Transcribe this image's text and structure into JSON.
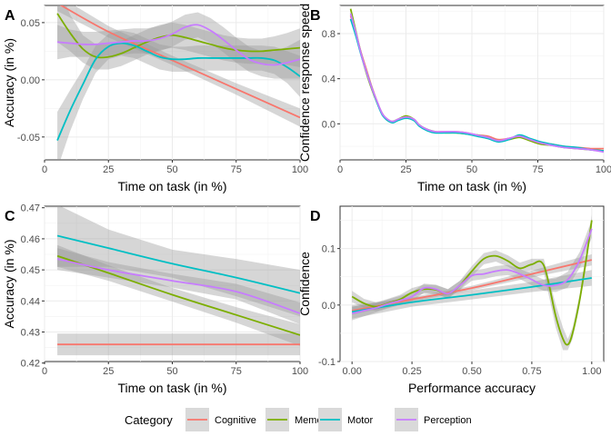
{
  "legend": {
    "title": "Category",
    "items": [
      {
        "name": "Cognitive",
        "color": "#F8766D"
      },
      {
        "name": "Memory",
        "color": "#7CAE00"
      },
      {
        "name": "Motor",
        "color": "#00BFC4"
      },
      {
        "name": "Perception",
        "color": "#C77CFF"
      }
    ]
  },
  "chart_data": [
    {
      "panel": "A",
      "type": "line",
      "xlabel": "Time on task (in %)",
      "ylabel": "Accuracy (in %)",
      "xlim": [
        0,
        100
      ],
      "ylim": [
        -0.07,
        0.065
      ],
      "x_ticks": [
        0,
        25,
        50,
        75,
        100
      ],
      "x_tick_labels": [
        "0",
        "25",
        "50",
        "75",
        "100"
      ],
      "y_ticks": [
        -0.05,
        0,
        0.05
      ],
      "y_tick_labels": [
        "-0.05",
        "0.00",
        "0.05"
      ],
      "grid": true,
      "series": [
        {
          "name": "Cognitive",
          "x": [
            5,
            25,
            50,
            75,
            100
          ],
          "y": [
            0.067,
            0.042,
            0.017,
            -0.008,
            -0.033
          ],
          "band": [
            0.007,
            0.005,
            0.004,
            0.005,
            0.008
          ]
        },
        {
          "name": "Memory",
          "x": [
            5,
            10,
            15,
            20,
            25,
            30,
            35,
            40,
            45,
            50,
            55,
            60,
            65,
            70,
            75,
            80,
            85,
            90,
            95,
            100
          ],
          "y": [
            0.058,
            0.041,
            0.027,
            0.02,
            0.02,
            0.023,
            0.028,
            0.033,
            0.037,
            0.039,
            0.037,
            0.034,
            0.031,
            0.028,
            0.026,
            0.025,
            0.025,
            0.026,
            0.027,
            0.028
          ],
          "band": [
            0.025,
            0.016,
            0.012,
            0.011,
            0.011,
            0.011,
            0.011,
            0.011,
            0.011,
            0.011,
            0.011,
            0.011,
            0.011,
            0.011,
            0.011,
            0.011,
            0.011,
            0.012,
            0.014,
            0.017
          ]
        },
        {
          "name": "Motor",
          "x": [
            5,
            10,
            15,
            20,
            25,
            30,
            35,
            40,
            45,
            50,
            55,
            60,
            65,
            70,
            75,
            80,
            85,
            90,
            95,
            100
          ],
          "y": [
            -0.053,
            -0.027,
            -0.004,
            0.018,
            0.029,
            0.032,
            0.03,
            0.025,
            0.02,
            0.018,
            0.018,
            0.019,
            0.019,
            0.019,
            0.019,
            0.019,
            0.019,
            0.017,
            0.011,
            0.003
          ],
          "band": [
            0.025,
            0.018,
            0.013,
            0.012,
            0.011,
            0.011,
            0.011,
            0.011,
            0.011,
            0.011,
            0.011,
            0.011,
            0.011,
            0.011,
            0.011,
            0.011,
            0.011,
            0.012,
            0.014,
            0.018
          ]
        },
        {
          "name": "Perception",
          "x": [
            5,
            10,
            15,
            20,
            25,
            30,
            35,
            40,
            45,
            50,
            55,
            60,
            65,
            70,
            75,
            80,
            85,
            90,
            95,
            100
          ],
          "y": [
            0.033,
            0.032,
            0.031,
            0.031,
            0.032,
            0.033,
            0.034,
            0.034,
            0.036,
            0.04,
            0.046,
            0.048,
            0.043,
            0.035,
            0.026,
            0.018,
            0.014,
            0.013,
            0.015,
            0.018
          ],
          "band": [
            0.015,
            0.012,
            0.011,
            0.011,
            0.011,
            0.011,
            0.011,
            0.011,
            0.011,
            0.011,
            0.011,
            0.011,
            0.011,
            0.011,
            0.011,
            0.011,
            0.011,
            0.012,
            0.014,
            0.017
          ]
        }
      ]
    },
    {
      "panel": "B",
      "type": "line",
      "xlabel": "Time on task (in %)",
      "ylabel": "Confidence response speed",
      "xlim": [
        0,
        100
      ],
      "ylim": [
        -0.32,
        1.05
      ],
      "x_ticks": [
        0,
        25,
        50,
        75,
        100
      ],
      "x_tick_labels": [
        "0",
        "25",
        "50",
        "75",
        "100"
      ],
      "y_ticks": [
        0,
        0.4,
        0.8
      ],
      "y_tick_labels": [
        "0.0",
        "0.4",
        "0.8"
      ],
      "grid": true,
      "series": [
        {
          "name": "Cognitive",
          "x": [
            4,
            6,
            8,
            10,
            12,
            14,
            16,
            18,
            20,
            22,
            25,
            28,
            30,
            33,
            36,
            40,
            44,
            48,
            52,
            56,
            60,
            64,
            68,
            72,
            76,
            80,
            85,
            90,
            95,
            100
          ],
          "y": [
            0.96,
            0.8,
            0.63,
            0.48,
            0.33,
            0.2,
            0.09,
            0.04,
            0.02,
            0.04,
            0.06,
            0.04,
            -0.01,
            -0.05,
            -0.07,
            -0.07,
            -0.07,
            -0.08,
            -0.1,
            -0.11,
            -0.14,
            -0.13,
            -0.11,
            -0.14,
            -0.17,
            -0.18,
            -0.2,
            -0.21,
            -0.22,
            -0.22
          ]
        },
        {
          "name": "Memory",
          "x": [
            4,
            6,
            8,
            10,
            12,
            14,
            16,
            18,
            20,
            22,
            25,
            28,
            30,
            33,
            36,
            40,
            44,
            48,
            52,
            56,
            60,
            64,
            68,
            72,
            76,
            80,
            85,
            90,
            95,
            100
          ],
          "y": [
            1.02,
            0.82,
            0.62,
            0.45,
            0.31,
            0.19,
            0.09,
            0.03,
            0.02,
            0.04,
            0.07,
            0.04,
            -0.01,
            -0.05,
            -0.07,
            -0.08,
            -0.08,
            -0.09,
            -0.1,
            -0.12,
            -0.15,
            -0.14,
            -0.12,
            -0.15,
            -0.18,
            -0.19,
            -0.21,
            -0.22,
            -0.23,
            -0.24
          ]
        },
        {
          "name": "Motor",
          "x": [
            4,
            6,
            8,
            10,
            12,
            14,
            16,
            18,
            20,
            22,
            25,
            28,
            30,
            33,
            36,
            40,
            44,
            48,
            52,
            56,
            60,
            64,
            68,
            72,
            76,
            80,
            85,
            90,
            95,
            100
          ],
          "y": [
            0.93,
            0.78,
            0.61,
            0.46,
            0.32,
            0.19,
            0.08,
            0.03,
            0.01,
            0.03,
            0.05,
            0.03,
            -0.02,
            -0.06,
            -0.08,
            -0.08,
            -0.08,
            -0.09,
            -0.11,
            -0.13,
            -0.16,
            -0.14,
            -0.1,
            -0.13,
            -0.16,
            -0.18,
            -0.2,
            -0.21,
            -0.23,
            -0.24
          ]
        },
        {
          "name": "Perception",
          "x": [
            4,
            6,
            8,
            10,
            12,
            14,
            16,
            18,
            20,
            22,
            25,
            28,
            30,
            33,
            36,
            40,
            44,
            48,
            52,
            56,
            60,
            64,
            68,
            72,
            76,
            80,
            85,
            90,
            95,
            100
          ],
          "y": [
            0.98,
            0.81,
            0.62,
            0.46,
            0.32,
            0.2,
            0.09,
            0.04,
            0.02,
            0.04,
            0.06,
            0.04,
            -0.01,
            -0.05,
            -0.07,
            -0.07,
            -0.07,
            -0.08,
            -0.1,
            -0.12,
            -0.15,
            -0.13,
            -0.11,
            -0.14,
            -0.17,
            -0.19,
            -0.21,
            -0.22,
            -0.23,
            -0.25
          ]
        }
      ]
    },
    {
      "panel": "C",
      "type": "line",
      "xlabel": "Time on task (in %)",
      "ylabel": "Accuracy (in %)",
      "xlim": [
        0,
        100
      ],
      "ylim": [
        0.4205,
        0.4705
      ],
      "x_ticks": [
        0,
        25,
        50,
        75,
        100
      ],
      "x_tick_labels": [
        "0",
        "25",
        "50",
        "75",
        "100"
      ],
      "y_ticks": [
        0.42,
        0.43,
        0.44,
        0.45,
        0.46,
        0.47
      ],
      "y_tick_labels": [
        "0.42",
        "0.43",
        "0.44",
        "0.45",
        "0.46",
        "0.47"
      ],
      "grid": true,
      "series": [
        {
          "name": "Cognitive",
          "x": [
            5,
            100
          ],
          "y": [
            0.426,
            0.426
          ],
          "band": [
            0.0035,
            0.0035
          ]
        },
        {
          "name": "Memory",
          "x": [
            5,
            25,
            50,
            75,
            100
          ],
          "y": [
            0.4545,
            0.449,
            0.442,
            0.4355,
            0.429
          ],
          "band": [
            0.0035,
            0.0025,
            0.0022,
            0.0025,
            0.0035
          ]
        },
        {
          "name": "Motor",
          "x": [
            5,
            25,
            50,
            75,
            100
          ],
          "y": [
            0.461,
            0.457,
            0.452,
            0.4475,
            0.4425
          ],
          "band": [
            0.01,
            0.006,
            0.0045,
            0.006,
            0.0075
          ]
        },
        {
          "name": "Perception",
          "x": [
            5,
            25,
            50,
            75,
            100
          ],
          "y": [
            0.4535,
            0.45,
            0.4465,
            0.443,
            0.436
          ],
          "band": [
            0.0035,
            0.0025,
            0.0022,
            0.0025,
            0.0035
          ]
        }
      ]
    },
    {
      "panel": "D",
      "type": "line",
      "xlabel": "Performance accuracy",
      "ylabel": "Confidence",
      "xlim": [
        -0.05,
        1.05
      ],
      "ylim": [
        -0.1,
        0.175
      ],
      "x_ticks": [
        0,
        0.25,
        0.5,
        0.75,
        1
      ],
      "x_tick_labels": [
        "0.00",
        "0.25",
        "0.50",
        "0.75",
        "1.00"
      ],
      "y_ticks": [
        -0.1,
        0,
        0.1
      ],
      "y_tick_labels": [
        "-0.1",
        "0.0",
        "0.1"
      ],
      "grid": true,
      "series": [
        {
          "name": "Cognitive",
          "x": [
            0,
            0.25,
            0.5,
            0.75,
            1
          ],
          "y": [
            -0.01,
            0.01,
            0.03,
            0.055,
            0.08
          ],
          "band": [
            0.007,
            0.004,
            0.004,
            0.006,
            0.01
          ]
        },
        {
          "name": "Memory",
          "x": [
            0,
            0.05,
            0.1,
            0.15,
            0.2,
            0.25,
            0.3,
            0.35,
            0.4,
            0.45,
            0.5,
            0.55,
            0.6,
            0.65,
            0.7,
            0.75,
            0.8,
            0.85,
            0.88,
            0.9,
            0.92,
            0.95,
            0.98,
            1.0
          ],
          "y": [
            0.015,
            0.003,
            -0.003,
            0.003,
            0.01,
            0.022,
            0.028,
            0.027,
            0.02,
            0.035,
            0.06,
            0.082,
            0.087,
            0.078,
            0.065,
            0.072,
            0.07,
            -0.02,
            -0.06,
            -0.07,
            -0.05,
            0.01,
            0.09,
            0.15
          ],
          "band": [
            0.01,
            0.008,
            0.008,
            0.008,
            0.008,
            0.008,
            0.008,
            0.008,
            0.008,
            0.008,
            0.009,
            0.01,
            0.01,
            0.01,
            0.01,
            0.01,
            0.012,
            0.02,
            0.02,
            0.01,
            0.01,
            0.01,
            0.012,
            0.01
          ]
        },
        {
          "name": "Motor",
          "x": [
            0,
            0.25,
            0.5,
            0.75,
            1
          ],
          "y": [
            -0.012,
            0.005,
            0.018,
            0.032,
            0.048
          ],
          "band": [
            0.012,
            0.008,
            0.008,
            0.009,
            0.014
          ]
        },
        {
          "name": "Perception",
          "x": [
            0,
            0.05,
            0.1,
            0.15,
            0.2,
            0.25,
            0.3,
            0.35,
            0.4,
            0.45,
            0.5,
            0.55,
            0.6,
            0.65,
            0.7,
            0.75,
            0.8,
            0.85,
            0.9,
            0.95,
            1.0
          ],
          "y": [
            -0.015,
            -0.01,
            -0.005,
            0.002,
            0.008,
            0.015,
            0.03,
            0.028,
            0.02,
            0.035,
            0.052,
            0.055,
            0.06,
            0.062,
            0.055,
            0.045,
            0.035,
            0.035,
            0.045,
            0.08,
            0.135
          ],
          "band": [
            0.012,
            0.01,
            0.008,
            0.008,
            0.008,
            0.008,
            0.008,
            0.008,
            0.008,
            0.008,
            0.009,
            0.009,
            0.009,
            0.009,
            0.009,
            0.01,
            0.01,
            0.012,
            0.014,
            0.014,
            0.016
          ]
        }
      ]
    }
  ]
}
